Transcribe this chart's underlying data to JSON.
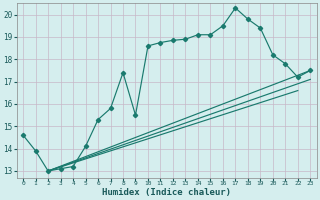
{
  "title": "",
  "xlabel": "Humidex (Indice chaleur)",
  "xlim": [
    -0.5,
    23.5
  ],
  "ylim": [
    12.7,
    20.5
  ],
  "xticks": [
    0,
    1,
    2,
    3,
    4,
    5,
    6,
    7,
    8,
    9,
    10,
    11,
    12,
    13,
    14,
    15,
    16,
    17,
    18,
    19,
    20,
    21,
    22,
    23
  ],
  "yticks": [
    13,
    14,
    15,
    16,
    17,
    18,
    19,
    20
  ],
  "bg_color": "#d5eeee",
  "grid_color": "#b0d8d8",
  "line_color": "#1a7a6e",
  "series1_x": [
    0,
    1,
    2,
    3,
    4,
    5,
    6,
    7,
    8,
    9,
    10,
    11,
    12,
    13,
    14,
    15,
    16,
    17,
    18,
    19,
    20,
    21,
    22,
    23
  ],
  "series1_y": [
    14.6,
    13.9,
    13.0,
    13.1,
    13.2,
    14.1,
    15.3,
    15.8,
    17.4,
    15.5,
    18.6,
    18.75,
    18.85,
    18.9,
    19.1,
    19.1,
    19.5,
    20.3,
    19.8,
    19.4,
    18.2,
    17.8,
    17.2,
    17.5
  ],
  "series2_x": [
    2,
    23
  ],
  "series2_y": [
    13.0,
    17.5
  ],
  "series3_x": [
    2,
    23
  ],
  "series3_y": [
    13.0,
    17.1
  ],
  "series4_x": [
    2,
    22
  ],
  "series4_y": [
    13.0,
    16.6
  ]
}
